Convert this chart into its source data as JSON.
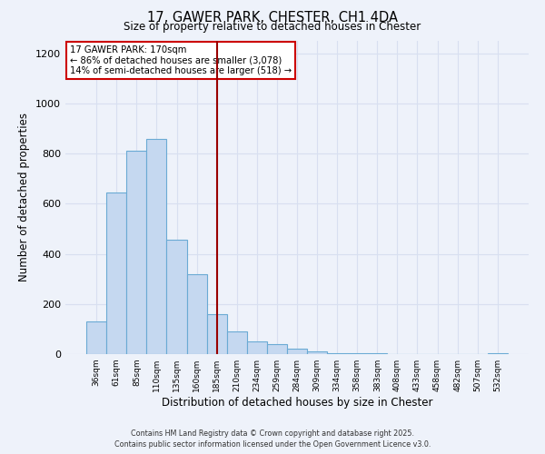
{
  "title": "17, GAWER PARK, CHESTER, CH1 4DA",
  "subtitle": "Size of property relative to detached houses in Chester",
  "xlabel": "Distribution of detached houses by size in Chester",
  "ylabel": "Number of detached properties",
  "bar_color": "#c5d8f0",
  "bar_edge_color": "#6aaad4",
  "background_color": "#eef2fa",
  "grid_color": "#d8dff0",
  "categories": [
    "36sqm",
    "61sqm",
    "85sqm",
    "110sqm",
    "135sqm",
    "160sqm",
    "185sqm",
    "210sqm",
    "234sqm",
    "259sqm",
    "284sqm",
    "309sqm",
    "334sqm",
    "358sqm",
    "383sqm",
    "408sqm",
    "433sqm",
    "458sqm",
    "482sqm",
    "507sqm",
    "532sqm"
  ],
  "values": [
    130,
    645,
    810,
    860,
    455,
    320,
    158,
    92,
    50,
    40,
    22,
    12,
    5,
    3,
    2,
    1,
    1,
    0,
    0,
    0,
    3
  ],
  "vline_position": 6.0,
  "vline_color": "#990000",
  "annotation_title": "17 GAWER PARK: 170sqm",
  "annotation_line1": "← 86% of detached houses are smaller (3,078)",
  "annotation_line2": "14% of semi-detached houses are larger (518) →",
  "annotation_box_color": "#ffffff",
  "annotation_box_edgecolor": "#cc0000",
  "ylim": [
    0,
    1250
  ],
  "yticks": [
    0,
    200,
    400,
    600,
    800,
    1000,
    1200
  ],
  "footer1": "Contains HM Land Registry data © Crown copyright and database right 2025.",
  "footer2": "Contains public sector information licensed under the Open Government Licence v3.0."
}
